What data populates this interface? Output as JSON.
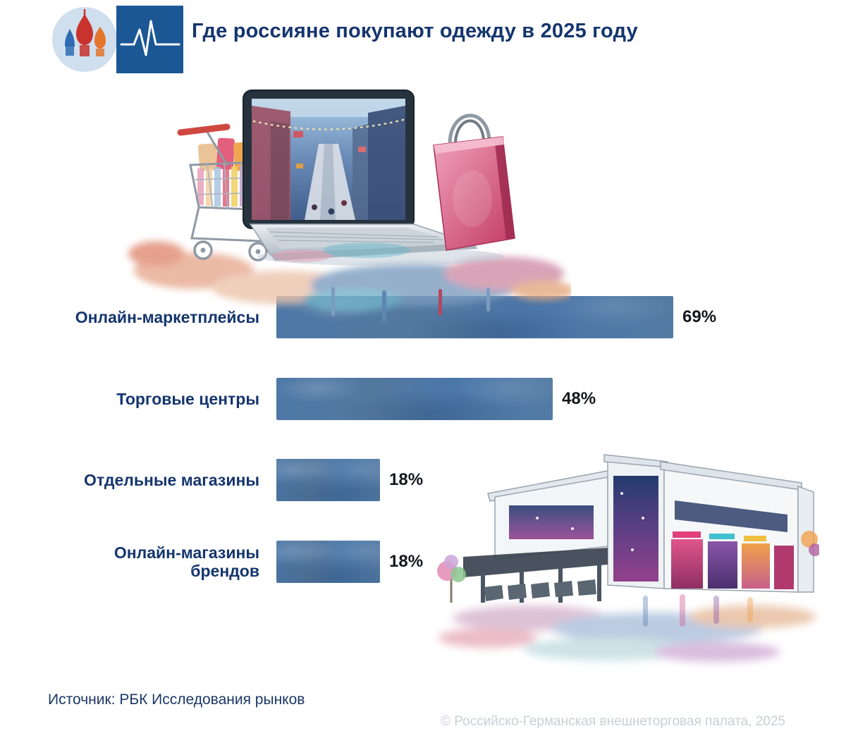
{
  "header": {
    "title": "Где россияне покупают одежду в 2025 году",
    "logo_name": "rbc-style-logo"
  },
  "chart_data": {
    "type": "bar",
    "orientation": "horizontal",
    "title": "Где россияне покупают одежду в 2025 году",
    "categories": [
      "Онлайн-маркетплейсы",
      "Торговые центры",
      "Отдельные магазины",
      "Онлайн-магазины брендов"
    ],
    "values": [
      69,
      48,
      18,
      18
    ],
    "value_labels": [
      "69%",
      "48%",
      "18%",
      "18%"
    ],
    "unit": "%",
    "xlim": [
      0,
      100
    ],
    "grid": false,
    "legend": false,
    "bar_color": "#4d78a7",
    "label_color": "#15356e",
    "value_color": "#14181f"
  },
  "illustrations": {
    "top": "watercolor laptop with street scene, shopping cart and pink shopping bag",
    "bottom_right": "watercolor shopping mall exterior with colorful storefronts"
  },
  "footer": {
    "source": "Источник: РБК Исследования рынков",
    "watermark": "© Российско-Германская внешнеторговая палата, 2025"
  }
}
